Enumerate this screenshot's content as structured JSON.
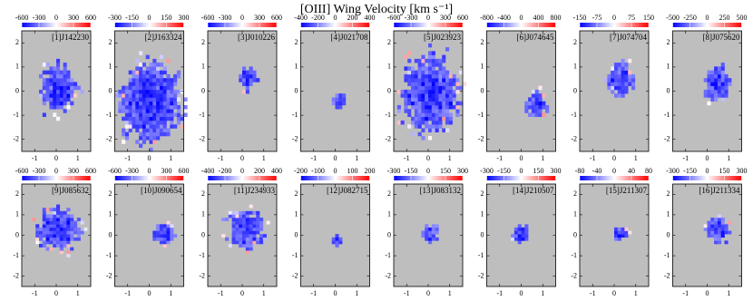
{
  "title": "[OIII] Wing Velocity [km s⁻¹]",
  "chart_data": [
    {
      "type": "map",
      "label": "[1]J142230",
      "clim": [
        -600,
        600
      ],
      "cticks": [
        -600,
        -300,
        0,
        300,
        600
      ],
      "xlim": [
        -1.6,
        1.6
      ],
      "xticks": [
        -1,
        0,
        1
      ],
      "ylim": [
        -2.5,
        2.5
      ],
      "yticks": [
        -2,
        -1,
        0,
        1,
        2
      ]
    },
    {
      "type": "map",
      "label": "[2]J163324",
      "clim": [
        -300,
        300
      ],
      "cticks": [
        -300,
        -150,
        0,
        150,
        300
      ],
      "xlim": [
        -1.6,
        1.6
      ],
      "xticks": [
        -1,
        0,
        1
      ],
      "ylim": [
        -2.5,
        2.5
      ],
      "yticks": [
        -2,
        -1,
        0,
        1,
        2
      ]
    },
    {
      "type": "map",
      "label": "[3]J010226",
      "clim": [
        -600,
        600
      ],
      "cticks": [
        -600,
        -300,
        0,
        300,
        600
      ],
      "xlim": [
        -1.6,
        1.6
      ],
      "xticks": [
        -1,
        0,
        1
      ],
      "ylim": [
        -2.5,
        2.5
      ],
      "yticks": [
        -2,
        -1,
        0,
        1,
        2
      ]
    },
    {
      "type": "map",
      "label": "[4]J021708",
      "clim": [
        -400,
        400
      ],
      "cticks": [
        -400,
        -200,
        0,
        200,
        400
      ],
      "xlim": [
        -1.6,
        1.6
      ],
      "xticks": [
        -1,
        0,
        1
      ],
      "ylim": [
        -2.5,
        2.5
      ],
      "yticks": [
        -2,
        -1,
        0,
        1,
        2
      ]
    },
    {
      "type": "map",
      "label": "[5]J023923",
      "clim": [
        -600,
        600
      ],
      "cticks": [
        -600,
        -300,
        0,
        300,
        600
      ],
      "xlim": [
        -1.6,
        1.6
      ],
      "xticks": [
        -1,
        0,
        1
      ],
      "ylim": [
        -2.5,
        2.5
      ],
      "yticks": [
        -2,
        -1,
        0,
        1,
        2
      ]
    },
    {
      "type": "map",
      "label": "[6]J074645",
      "clim": [
        -800,
        800
      ],
      "cticks": [
        -800,
        -400,
        0,
        400,
        800
      ],
      "xlim": [
        -1.6,
        1.6
      ],
      "xticks": [
        -1,
        0,
        1
      ],
      "ylim": [
        -2.5,
        2.5
      ],
      "yticks": [
        -2,
        -1,
        0,
        1,
        2
      ]
    },
    {
      "type": "map",
      "label": "[7]J074704",
      "clim": [
        -150,
        150
      ],
      "cticks": [
        -150,
        -75,
        0,
        75,
        150
      ],
      "xlim": [
        -1.6,
        1.6
      ],
      "xticks": [
        -1,
        0,
        1
      ],
      "ylim": [
        -2.5,
        2.5
      ],
      "yticks": [
        -2,
        -1,
        0,
        1,
        2
      ]
    },
    {
      "type": "map",
      "label": "[8]J075620",
      "clim": [
        -500,
        500
      ],
      "cticks": [
        -500,
        -250,
        0,
        250,
        500
      ],
      "xlim": [
        -1.6,
        1.6
      ],
      "xticks": [
        -1,
        0,
        1
      ],
      "ylim": [
        -2.5,
        2.5
      ],
      "yticks": [
        -2,
        -1,
        0,
        1,
        2
      ]
    },
    {
      "type": "map",
      "label": "[9]J085632",
      "clim": [
        -600,
        600
      ],
      "cticks": [
        -600,
        -300,
        0,
        300,
        600
      ],
      "xlim": [
        -1.6,
        1.6
      ],
      "xticks": [
        -1,
        0,
        1
      ],
      "ylim": [
        -2.5,
        2.5
      ],
      "yticks": [
        -2,
        -1,
        0,
        1,
        2
      ]
    },
    {
      "type": "map",
      "label": "[10]J090654",
      "clim": [
        -600,
        600
      ],
      "cticks": [
        -600,
        -300,
        0,
        300,
        600
      ],
      "xlim": [
        -1.6,
        1.6
      ],
      "xticks": [
        -1,
        0,
        1
      ],
      "ylim": [
        -2.5,
        2.5
      ],
      "yticks": [
        -2,
        -1,
        0,
        1,
        2
      ]
    },
    {
      "type": "map",
      "label": "[11]J234933",
      "clim": [
        -400,
        400
      ],
      "cticks": [
        -400,
        -200,
        0,
        200,
        400
      ],
      "xlim": [
        -1.6,
        1.6
      ],
      "xticks": [
        -1,
        0,
        1
      ],
      "ylim": [
        -2.5,
        2.5
      ],
      "yticks": [
        -2,
        -1,
        0,
        1,
        2
      ]
    },
    {
      "type": "map",
      "label": "[12]J082715",
      "clim": [
        -200,
        200
      ],
      "cticks": [
        -200,
        -100,
        0,
        100,
        200
      ],
      "xlim": [
        -1.6,
        1.6
      ],
      "xticks": [
        -1,
        0,
        1
      ],
      "ylim": [
        -2.5,
        2.5
      ],
      "yticks": [
        -2,
        -1,
        0,
        1,
        2
      ]
    },
    {
      "type": "map",
      "label": "[13]J083132",
      "clim": [
        -300,
        300
      ],
      "cticks": [
        -300,
        -150,
        0,
        150,
        300
      ],
      "xlim": [
        -1.6,
        1.6
      ],
      "xticks": [
        -1,
        0,
        1
      ],
      "ylim": [
        -2.5,
        2.5
      ],
      "yticks": [
        -2,
        -1,
        0,
        1,
        2
      ]
    },
    {
      "type": "map",
      "label": "[14]J210507",
      "clim": [
        -300,
        300
      ],
      "cticks": [
        -300,
        -150,
        0,
        150,
        300
      ],
      "xlim": [
        -1.6,
        1.6
      ],
      "xticks": [
        -1,
        0,
        1
      ],
      "ylim": [
        -2.5,
        2.5
      ],
      "yticks": [
        -2,
        -1,
        0,
        1,
        2
      ]
    },
    {
      "type": "map",
      "label": "[15]J211307",
      "clim": [
        -80,
        80
      ],
      "cticks": [
        -80,
        -40,
        0,
        40,
        80
      ],
      "xlim": [
        -1.6,
        1.6
      ],
      "xticks": [
        -1,
        0,
        1
      ],
      "ylim": [
        -2.5,
        2.5
      ],
      "yticks": [
        -2,
        -1,
        0,
        1,
        2
      ]
    },
    {
      "type": "map",
      "label": "[16]J211334",
      "clim": [
        -300,
        300
      ],
      "cticks": [
        -300,
        -150,
        0,
        150,
        300
      ],
      "xlim": [
        -1.6,
        1.6
      ],
      "xticks": [
        -1,
        0,
        1
      ],
      "ylim": [
        -2.5,
        2.5
      ],
      "yticks": [
        -2,
        -1,
        0,
        1,
        2
      ]
    }
  ]
}
